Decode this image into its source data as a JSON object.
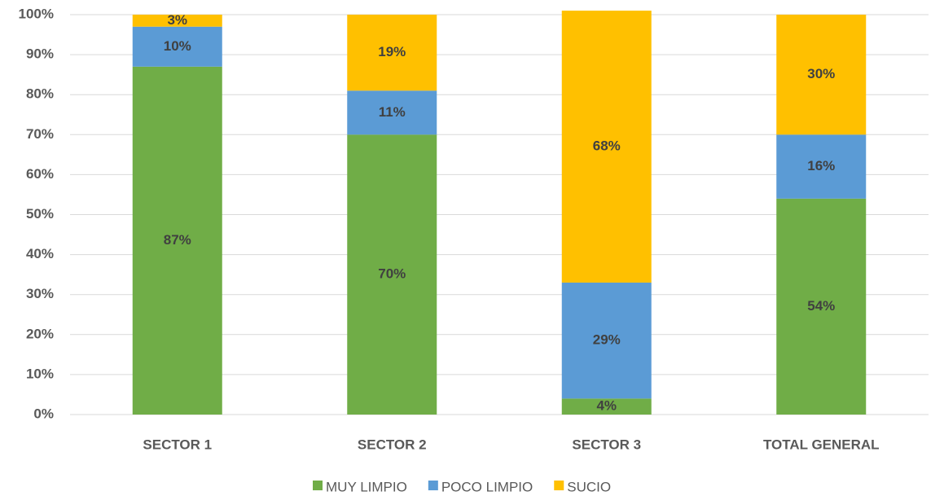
{
  "chart_data": {
    "type": "stacked_bar",
    "categories": [
      "SECTOR 1",
      "SECTOR 2",
      "SECTOR 3",
      "TOTAL GENERAL"
    ],
    "series": [
      {
        "name": "MUY LIMPIO",
        "color": "#70ad47",
        "values": [
          87,
          70,
          4,
          54
        ],
        "value_labels": [
          "87%",
          "70%",
          "4%",
          "54%"
        ]
      },
      {
        "name": "POCO LIMPIO",
        "color": "#5b9bd5",
        "values": [
          10,
          11,
          29,
          16
        ],
        "value_labels": [
          "10%",
          "11%",
          "29%",
          "16%"
        ]
      },
      {
        "name": "SUCIO",
        "color": "#ffc000",
        "values": [
          3,
          19,
          68,
          30
        ],
        "value_labels": [
          "3%",
          "19%",
          "68%",
          "30%"
        ]
      }
    ],
    "ylim": [
      0,
      100
    ],
    "yticks": [
      {
        "value": 0,
        "label": "0%"
      },
      {
        "value": 10,
        "label": "10%"
      },
      {
        "value": 20,
        "label": "20%"
      },
      {
        "value": 30,
        "label": "30%"
      },
      {
        "value": 40,
        "label": "40%"
      },
      {
        "value": 50,
        "label": "50%"
      },
      {
        "value": 60,
        "label": "60%"
      },
      {
        "value": 70,
        "label": "70%"
      },
      {
        "value": 80,
        "label": "80%"
      },
      {
        "value": 90,
        "label": "90%"
      },
      {
        "value": 100,
        "label": "100%"
      }
    ],
    "grid": true,
    "legend": "bottom"
  }
}
